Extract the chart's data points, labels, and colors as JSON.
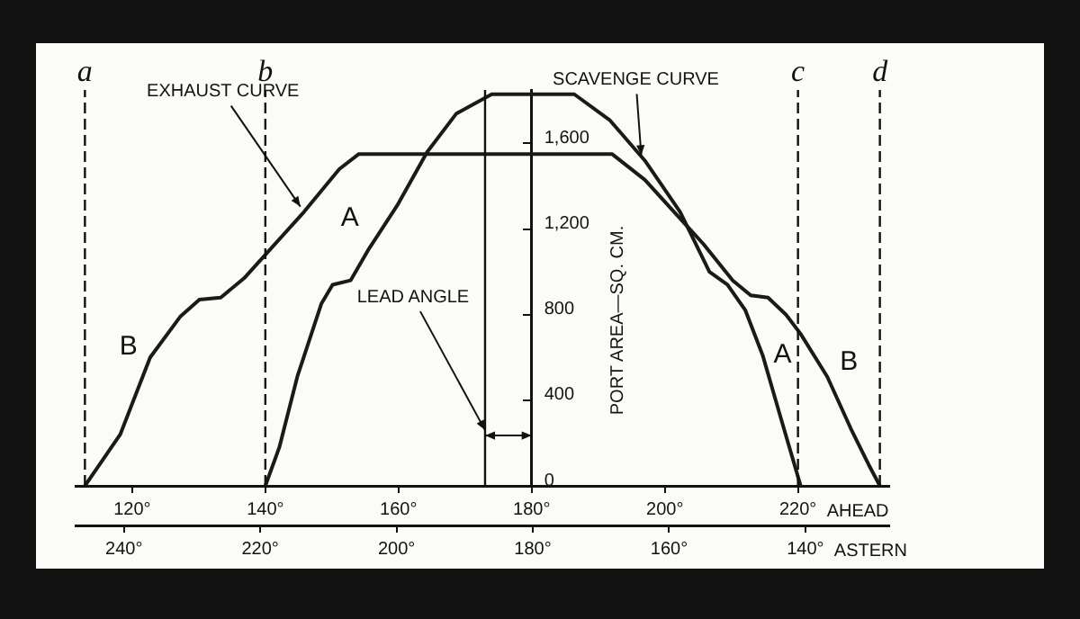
{
  "chart_data": {
    "type": "line",
    "xlabel": "AHEAD",
    "x2label": "ASTERN",
    "ylabel": "PORT AREA—SQ. CM.",
    "xlim": [
      111.5,
      233.7
    ],
    "ylim": [
      0,
      1850
    ],
    "xticks": [
      {
        "value": 120,
        "label": "120°"
      },
      {
        "value": 140,
        "label": "140°"
      },
      {
        "value": 160,
        "label": "160°"
      },
      {
        "value": 180,
        "label": "180°"
      },
      {
        "value": 200,
        "label": "200°"
      },
      {
        "value": 220,
        "label": "220°"
      }
    ],
    "x2lim": [
      247.1,
      127.7
    ],
    "x2ticks": [
      {
        "value": 240,
        "label": "240°"
      },
      {
        "value": 220,
        "label": "220°"
      },
      {
        "value": 200,
        "label": "200°"
      },
      {
        "value": 180,
        "label": "180°"
      },
      {
        "value": 160,
        "label": "160°"
      },
      {
        "value": 140,
        "label": "140°"
      }
    ],
    "yticks": [
      0,
      400,
      800,
      {
        "value": 1200,
        "label": "1,200"
      },
      {
        "value": 1600,
        "label": "1,600"
      }
    ],
    "series": [
      {
        "color": "#1a1a1a",
        "x": [
          112.9,
          118.2,
          122.7,
          127.2,
          130.1,
          133.3,
          136.8,
          140,
          145.8,
          151.1,
          154,
          192.1,
          197,
          201.4,
          205.8,
          210.2,
          212.9,
          215.5,
          218.2,
          220.4,
          224.4,
          227.9,
          230.6,
          232.3
        ],
        "values": [
          0,
          240,
          600,
          790,
          870,
          880,
          970,
          1080,
          1280,
          1480,
          1550,
          1550,
          1430,
          1280,
          1130,
          960,
          890,
          880,
          800,
          710,
          510,
          270,
          100,
          0
        ]
      },
      {
        "color": "#1a1a1a",
        "x": [
          140,
          142.1,
          144.8,
          148.4,
          150.1,
          152.8,
          155.4,
          159.8,
          164.3,
          168.7,
          174,
          186.4,
          191.7,
          197,
          202.3,
          206.7,
          209.4,
          212.1,
          214.7,
          217.3,
          220.4
        ],
        "values": [
          0,
          180,
          510,
          850,
          940,
          960,
          1100,
          1310,
          1560,
          1740,
          1830,
          1830,
          1710,
          1520,
          1280,
          1000,
          940,
          820,
          610,
          330,
          0
        ]
      }
    ],
    "annotations": [
      {
        "text": "EXHAUST CURVE",
        "x": 145.8,
        "y": 1280
      },
      {
        "text": "SCAVENGE CURVE",
        "x": 197,
        "y": 1520
      },
      {
        "text": "A",
        "x": 155.4,
        "y": 1100
      },
      {
        "text": "B",
        "x": 122.7,
        "y": 600
      },
      {
        "text": "A",
        "x": 214.7,
        "y": 610
      },
      {
        "text": "B",
        "x": 224.4,
        "y": 510
      },
      {
        "text": "LEAD ANGLE",
        "x": 173,
        "y": 235
      }
    ],
    "ref_lines": [
      {
        "axis": "x",
        "value": 112.9,
        "label": "a",
        "line_style": "dashed"
      },
      {
        "axis": "x",
        "value": 140,
        "label": "b",
        "line_style": "dashed"
      },
      {
        "axis": "x",
        "value": 220,
        "label": "c",
        "line_style": "dashed"
      },
      {
        "axis": "x",
        "value": 232.3,
        "label": "d",
        "line_style": "dashed"
      },
      {
        "axis": "x",
        "value": 173,
        "line_style": "solid"
      }
    ],
    "legend": false,
    "grid": false,
    "marker": "none",
    "line_style": "solid"
  }
}
